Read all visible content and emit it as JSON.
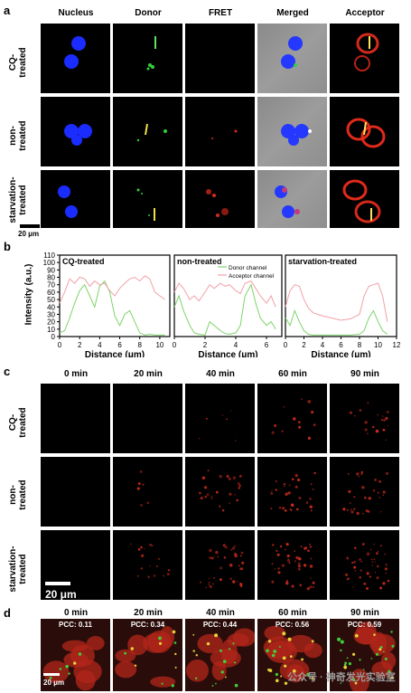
{
  "panel_a": {
    "label": "a",
    "columns": [
      "Nucleus",
      "Donor",
      "FRET",
      "Merged",
      "Acceptor"
    ],
    "rows": [
      {
        "label_line1": "CQ-",
        "label_line2": "treated"
      },
      {
        "label_line1": "non-",
        "label_line2": "treated"
      },
      {
        "label_line1": "starvation-",
        "label_line2": "treated"
      }
    ],
    "scale_bar": "20 μm",
    "colors": {
      "nucleus": "#1a2cff",
      "donor": "#31d13a",
      "fret": "#d42a1c",
      "acceptor": "#e02a1a",
      "merged_bg": "#939393"
    }
  },
  "panel_b": {
    "label": "b",
    "y_axis_title": "Intensity (a.u.)",
    "x_axis_title": "Distance (μm)"
  },
  "panel_c": {
    "label": "c",
    "columns": [
      "0 min",
      "20 min",
      "40 min",
      "60 min",
      "90 min"
    ],
    "rows": [
      {
        "label_line1": "CQ-",
        "label_line2": "treated"
      },
      {
        "label_line1": "non-",
        "label_line2": "treated"
      },
      {
        "label_line1": "starvation-",
        "label_line2": "treated"
      }
    ],
    "scale_bar": "20 μm"
  },
  "panel_d": {
    "label": "d",
    "columns": [
      "0 min",
      "20 min",
      "40 min",
      "60 min",
      "90 min"
    ],
    "pcc": [
      "PCC: 0.11",
      "PCC: 0.34",
      "PCC: 0.44",
      "PCC: 0.56",
      "PCC: 0.59"
    ],
    "scale_bar": "20 μm"
  },
  "watermark": "公众号 · 神奇发光实验室",
  "chart_data": [
    {
      "type": "line",
      "title": "CQ-treated",
      "xlabel": "Distance (μm)",
      "ylabel": "Intensity (a.u.)",
      "xlim": [
        0,
        11
      ],
      "ylim": [
        0,
        110
      ],
      "xticks": [
        0,
        2,
        4,
        6,
        8,
        10
      ],
      "yticks": [
        0,
        10,
        20,
        30,
        40,
        50,
        60,
        70,
        80,
        90,
        100,
        110
      ],
      "series": [
        {
          "color": "#7ed36a",
          "x": [
            0,
            0.5,
            1,
            1.5,
            2,
            2.5,
            3,
            3.5,
            4,
            4.5,
            5,
            5.5,
            6,
            6.5,
            7,
            7.5,
            8,
            8.5,
            9,
            9.5,
            10,
            10.5
          ],
          "y": [
            5,
            8,
            25,
            45,
            62,
            70,
            55,
            40,
            68,
            75,
            60,
            28,
            15,
            30,
            35,
            20,
            5,
            2,
            3,
            2,
            2,
            2
          ]
        },
        {
          "color": "#f2a0aa",
          "x": [
            0,
            0.5,
            1,
            1.5,
            2,
            2.5,
            3,
            3.5,
            4,
            4.5,
            5,
            5.5,
            6,
            6.5,
            7,
            7.5,
            8,
            8.5,
            9,
            9.5,
            10,
            10.5
          ],
          "y": [
            45,
            60,
            78,
            72,
            80,
            78,
            68,
            75,
            70,
            72,
            62,
            55,
            65,
            72,
            78,
            80,
            75,
            82,
            78,
            60,
            55,
            50
          ]
        }
      ]
    },
    {
      "type": "line",
      "title": "non-treated",
      "xlabel": "Distance (μm)",
      "xlim": [
        0,
        7
      ],
      "ylim": [
        0,
        110
      ],
      "xticks": [
        0,
        2,
        4,
        6
      ],
      "legend": [
        "Donor channel",
        "Acceptor channel"
      ],
      "legend_position": "top-right",
      "series": [
        {
          "name": "Donor channel",
          "color": "#7ed36a",
          "x": [
            0,
            0.3,
            0.6,
            1,
            1.3,
            1.6,
            2,
            2.3,
            2.6,
            3,
            3.3,
            3.6,
            4,
            4.3,
            4.6,
            5,
            5.3,
            5.6,
            6,
            6.3,
            6.6
          ],
          "y": [
            40,
            55,
            35,
            15,
            5,
            3,
            2,
            20,
            15,
            8,
            4,
            3,
            5,
            15,
            55,
            70,
            45,
            25,
            15,
            20,
            10
          ]
        },
        {
          "name": "Acceptor channel",
          "color": "#f2a0aa",
          "x": [
            0,
            0.3,
            0.6,
            1,
            1.3,
            1.6,
            2,
            2.3,
            2.6,
            3,
            3.3,
            3.6,
            4,
            4.3,
            4.6,
            5,
            5.3,
            5.6,
            6,
            6.3,
            6.6
          ],
          "y": [
            60,
            72,
            65,
            50,
            55,
            48,
            60,
            70,
            65,
            72,
            68,
            70,
            62,
            58,
            72,
            75,
            65,
            55,
            45,
            55,
            40
          ]
        }
      ]
    },
    {
      "type": "line",
      "title": "starvation-treated",
      "xlabel": "Distance (μm)",
      "xlim": [
        0,
        12
      ],
      "ylim": [
        0,
        110
      ],
      "xticks": [
        0,
        2,
        4,
        6,
        8,
        10,
        12
      ],
      "series": [
        {
          "color": "#7ed36a",
          "x": [
            0,
            0.5,
            1,
            1.5,
            2,
            2.5,
            3,
            3.5,
            4,
            5,
            6,
            7,
            8,
            8.5,
            9,
            9.5,
            10,
            10.5,
            11
          ],
          "y": [
            25,
            15,
            35,
            20,
            8,
            3,
            2,
            2,
            2,
            2,
            2,
            2,
            3,
            8,
            25,
            35,
            20,
            8,
            3
          ]
        },
        {
          "color": "#f2a0aa",
          "x": [
            0,
            0.5,
            1,
            1.5,
            2,
            2.5,
            3,
            3.5,
            4,
            5,
            6,
            7,
            8,
            8.5,
            9,
            9.5,
            10,
            10.5,
            11
          ],
          "y": [
            40,
            62,
            70,
            68,
            50,
            38,
            32,
            30,
            28,
            25,
            22,
            24,
            30,
            55,
            68,
            70,
            72,
            55,
            20
          ]
        }
      ]
    }
  ]
}
